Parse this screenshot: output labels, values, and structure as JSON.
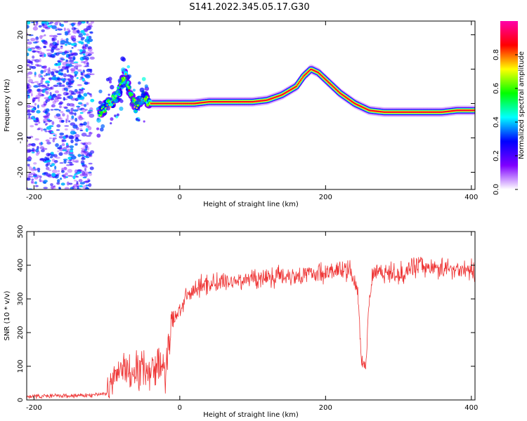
{
  "title": "S141.2022.345.05.17.G30",
  "chart_data": [
    {
      "type": "heatmap",
      "panel": "spectrogram",
      "xlabel": "Height of straight line (km)",
      "ylabel": "Frequency (Hz)",
      "xlim": [
        -210,
        405
      ],
      "ylim": [
        -25,
        24
      ],
      "x_ticks": [
        -200,
        0,
        200,
        400
      ],
      "y_ticks": [
        -20,
        -10,
        0,
        10,
        20
      ],
      "colorbar": {
        "label": "Normalized spectral amplitude",
        "range": [
          0,
          1
        ],
        "ticks": [
          0.0,
          0.2,
          0.4,
          0.6,
          0.8
        ],
        "colormap": [
          "#ffffff",
          "#7f00ff",
          "#0000ff",
          "#00ffff",
          "#00ff00",
          "#ffff00",
          "#ff0000",
          "#ff00aa"
        ]
      },
      "noise_region_x": [
        -210,
        -120
      ],
      "peak_frequency_track": {
        "x": [
          -110,
          -100,
          -90,
          -80,
          -75,
          -70,
          -60,
          -50,
          -40,
          -20,
          0,
          20,
          40,
          60,
          80,
          100,
          120,
          140,
          160,
          170,
          180,
          190,
          200,
          220,
          240,
          260,
          280,
          300,
          320,
          340,
          360,
          380,
          405
        ],
        "y": [
          -3,
          0,
          1,
          5,
          9,
          4,
          -1,
          2,
          0,
          0,
          0,
          0,
          0.5,
          0.5,
          0.5,
          0.5,
          1,
          2.5,
          5,
          8,
          10,
          9,
          7,
          3,
          0,
          -2,
          -2.5,
          -2.5,
          -2.5,
          -2.5,
          -2.5,
          -2,
          -2
        ]
      }
    },
    {
      "type": "line",
      "panel": "snr",
      "xlabel": "Height of straight line (km)",
      "ylabel": "SNR (10 * v/v)",
      "xlim": [
        -210,
        405
      ],
      "ylim": [
        0,
        500
      ],
      "x_ticks": [
        -200,
        0,
        200,
        400
      ],
      "y_ticks": [
        0,
        100,
        200,
        300,
        400,
        500
      ],
      "series_color": "#ee3333",
      "series": [
        {
          "x": [
            -210,
            -180,
            -150,
            -120,
            -100,
            -90,
            -80,
            -70,
            -60,
            -50,
            -40,
            -30,
            -20,
            -15,
            -10,
            -5,
            0,
            10,
            20,
            30,
            40,
            60,
            80,
            100,
            120,
            140,
            160,
            180,
            200,
            220,
            235,
            240,
            245,
            248,
            252,
            255,
            260,
            265,
            270,
            280,
            300,
            320,
            340,
            360,
            380,
            405
          ],
          "y": [
            10,
            12,
            12,
            14,
            20,
            60,
            95,
            80,
            90,
            100,
            90,
            105,
            80,
            170,
            230,
            250,
            270,
            305,
            325,
            340,
            345,
            350,
            355,
            360,
            365,
            370,
            370,
            375,
            380,
            385,
            380,
            350,
            300,
            150,
            100,
            110,
            300,
            380,
            390,
            380,
            370,
            400,
            395,
            390,
            390,
            380
          ]
        }
      ]
    }
  ]
}
